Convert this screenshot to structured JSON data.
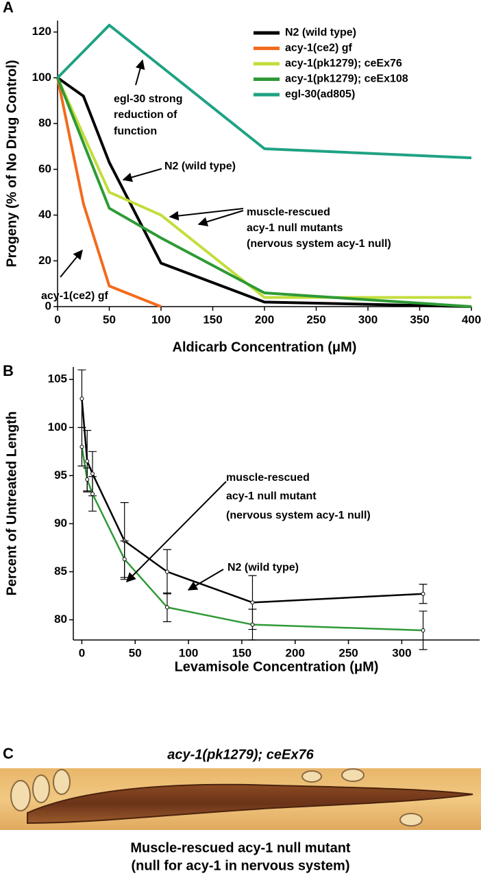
{
  "panel_labels": [
    "A",
    "B",
    "C"
  ],
  "chart_data": [
    {
      "type": "line",
      "xlabel": "Aldicarb Concentration (μM)",
      "ylabel": "Progeny (% of No Drug Control)",
      "xlim": [
        0,
        400
      ],
      "xticks": [
        0,
        50,
        100,
        150,
        200,
        250,
        300,
        350,
        400
      ],
      "ylim": [
        0,
        125
      ],
      "yticks": [
        0,
        20,
        40,
        60,
        80,
        100,
        120
      ],
      "legend": "upper right",
      "series": [
        {
          "name": "N2 (wild type)",
          "color": "#000000",
          "x": [
            0,
            25,
            50,
            100,
            200,
            400
          ],
          "values": [
            100,
            92,
            63,
            19,
            2,
            0
          ]
        },
        {
          "name": "acy-1(ce2) gf",
          "color": "#f26b1d",
          "x": [
            0,
            25,
            50,
            100
          ],
          "values": [
            100,
            45,
            9,
            0
          ]
        },
        {
          "name": "acy-1(pk1279); ceEx76",
          "color": "#c3dd3c",
          "x": [
            0,
            50,
            100,
            200,
            400
          ],
          "values": [
            100,
            50,
            40,
            4,
            4
          ]
        },
        {
          "name": "acy-1(pk1279); ceEx108",
          "color": "#2e9a35",
          "x": [
            0,
            50,
            100,
            200,
            400
          ],
          "values": [
            100,
            43,
            30,
            6,
            0
          ]
        },
        {
          "name": "egl-30(ad805)",
          "color": "#1fa283",
          "x": [
            0,
            50,
            200,
            400
          ],
          "values": [
            100,
            123,
            69,
            65
          ]
        }
      ],
      "annotations": [
        {
          "lines": [
            "egl-30 strong",
            "reduction of",
            "function"
          ]
        },
        {
          "lines": [
            "N2 (wild type)"
          ]
        },
        {
          "lines": [
            "muscle-rescued",
            "acy-1 null mutants",
            "(nervous system acy-1 null)"
          ]
        },
        {
          "lines": [
            "acy-1(ce2) gf"
          ]
        }
      ]
    },
    {
      "type": "line",
      "xlabel": "Levamisole Concentration (μM)",
      "ylabel": "Percent of Untreated Length",
      "xlim": [
        -8,
        373
      ],
      "xticks": [
        0,
        50,
        100,
        150,
        200,
        250,
        300
      ],
      "ylim": [
        77.9,
        106.3
      ],
      "yticks": [
        80,
        85,
        90,
        95,
        100,
        105
      ],
      "x": [
        0,
        5,
        10,
        40,
        80,
        160,
        320
      ],
      "series": [
        {
          "color": "#000000",
          "values": [
            103,
            96.5,
            95.2,
            88.2,
            85,
            81.8,
            82.7
          ],
          "errors": [
            3,
            3.2,
            2.3,
            4,
            2.3,
            2.8,
            1
          ]
        },
        {
          "color": "#2e9a35",
          "values": [
            98,
            94.6,
            93.1,
            86.3,
            81.3,
            79.5,
            78.9
          ],
          "errors": [
            2,
            1.2,
            1.8,
            1.9,
            1.5,
            1.6,
            2
          ]
        }
      ],
      "annotations": [
        {
          "lines": [
            "muscle-rescued",
            "acy-1 null mutant",
            "(nervous system acy-1 null)"
          ]
        },
        {
          "lines": [
            "N2 (wild type)"
          ]
        }
      ]
    }
  ],
  "panel_c": {
    "title": "acy-1(pk1279); ceEx76",
    "caption": [
      "Muscle-rescued acy-1 null mutant",
      "(null for acy-1 in nervous system)"
    ]
  }
}
